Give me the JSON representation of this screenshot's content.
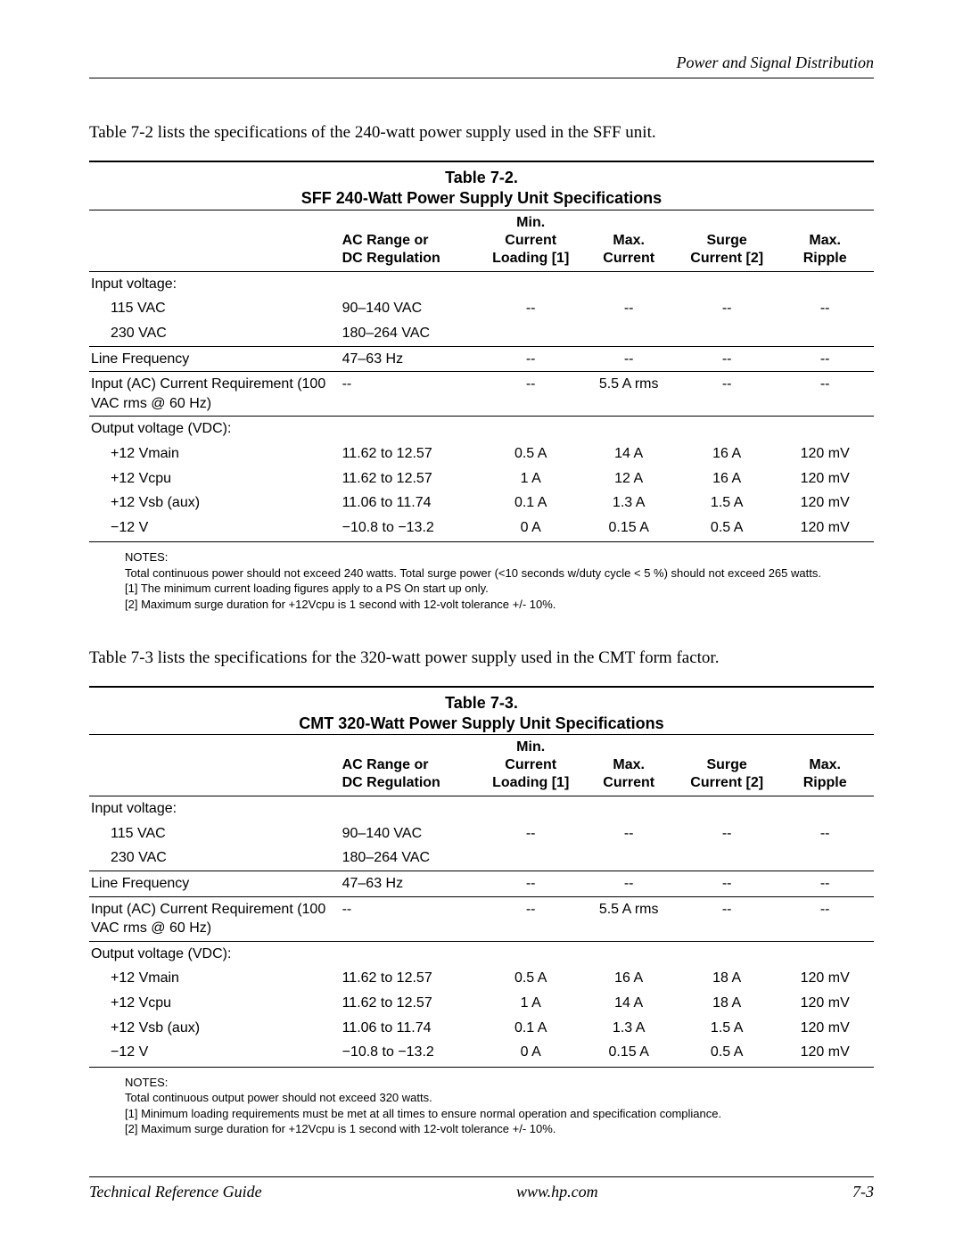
{
  "header": {
    "section_title": "Power and Signal Distribution"
  },
  "intro1": "Table 7-2 lists the specifications of the 240-watt power supply used in the SFF unit.",
  "intro2": "Table 7-3 lists the specifications for the 320-watt power supply used in the CMT form factor.",
  "columns": {
    "param": "",
    "ac": "AC Range or\nDC Regulation",
    "min": "Min.\nCurrent\nLoading [1]",
    "max": "Max.\nCurrent",
    "surge": "Surge\nCurrent [2]",
    "ripple": "Max.\nRipple"
  },
  "table1": {
    "number": "Table 7-2.",
    "title": "SFF 240-Watt Power Supply Unit Specifications",
    "rows": [
      {
        "label": "Input voltage:",
        "indent": false,
        "rule": false,
        "vals": [
          "",
          "",
          "",
          "",
          ""
        ]
      },
      {
        "label": "115 VAC",
        "indent": true,
        "rule": false,
        "vals": [
          "90–140 VAC",
          "--",
          "--",
          "--",
          "--"
        ]
      },
      {
        "label": "230 VAC",
        "indent": true,
        "rule": true,
        "vals": [
          "180–264 VAC",
          "",
          "",
          "",
          ""
        ]
      },
      {
        "label": "Line Frequency",
        "indent": false,
        "rule": true,
        "vals": [
          "47–63 Hz",
          "--",
          "--",
          "--",
          "--"
        ]
      },
      {
        "label": "Input (AC) Current Requirement (100 VAC rms @ 60 Hz)",
        "indent": false,
        "rule": true,
        "vals": [
          "--",
          "--",
          "5.5 A rms",
          "--",
          "--"
        ]
      },
      {
        "label": "Output voltage (VDC):",
        "indent": false,
        "rule": false,
        "vals": [
          "",
          "",
          "",
          "",
          ""
        ]
      },
      {
        "label": "+12 Vmain",
        "indent": true,
        "rule": false,
        "vals": [
          "11.62 to 12.57",
          "0.5 A",
          "14 A",
          "16 A",
          "120 mV"
        ]
      },
      {
        "label": "+12 Vcpu",
        "indent": true,
        "rule": false,
        "vals": [
          "11.62 to 12.57",
          "1 A",
          "12 A",
          "16 A",
          "120 mV"
        ]
      },
      {
        "label": "+12 Vsb (aux)",
        "indent": true,
        "rule": false,
        "vals": [
          "11.06 to 11.74",
          "0.1 A",
          "1.3 A",
          "1.5 A",
          "120 mV"
        ]
      },
      {
        "label": "−12 V",
        "indent": true,
        "rule": false,
        "vals": [
          "−10.8 to −13.2",
          "0 A",
          "0.15 A",
          "0.5 A",
          "120 mV"
        ]
      }
    ],
    "notes": [
      "NOTES:",
      "Total continuous power should not exceed 240 watts. Total surge power (<10 seconds w/duty cycle < 5 %) should not exceed 265 watts.",
      "[1] The minimum current loading figures apply to a PS On start up only.",
      "[2] Maximum surge duration for +12Vcpu is 1 second with 12-volt tolerance +/- 10%."
    ]
  },
  "table2": {
    "number": "Table 7-3.",
    "title": "CMT 320-Watt Power Supply Unit Specifications",
    "rows": [
      {
        "label": "Input voltage:",
        "indent": false,
        "rule": false,
        "vals": [
          "",
          "",
          "",
          "",
          ""
        ]
      },
      {
        "label": "115 VAC",
        "indent": true,
        "rule": false,
        "vals": [
          "90–140 VAC",
          "--",
          "--",
          "--",
          "--"
        ]
      },
      {
        "label": "230 VAC",
        "indent": true,
        "rule": true,
        "vals": [
          "180–264 VAC",
          "",
          "",
          "",
          ""
        ]
      },
      {
        "label": "Line Frequency",
        "indent": false,
        "rule": true,
        "vals": [
          "47–63 Hz",
          "--",
          "--",
          "--",
          "--"
        ]
      },
      {
        "label": "Input (AC) Current Requirement (100 VAC rms @ 60 Hz)",
        "indent": false,
        "rule": true,
        "vals": [
          "--",
          "--",
          "5.5 A rms",
          "--",
          "--"
        ]
      },
      {
        "label": "Output voltage (VDC):",
        "indent": false,
        "rule": false,
        "vals": [
          "",
          "",
          "",
          "",
          ""
        ]
      },
      {
        "label": "+12 Vmain",
        "indent": true,
        "rule": false,
        "vals": [
          "11.62 to 12.57",
          "0.5 A",
          "16 A",
          "18 A",
          "120 mV"
        ]
      },
      {
        "label": "+12 Vcpu",
        "indent": true,
        "rule": false,
        "vals": [
          "11.62 to 12.57",
          "1 A",
          "14 A",
          "18 A",
          "120 mV"
        ]
      },
      {
        "label": "+12 Vsb (aux)",
        "indent": true,
        "rule": false,
        "vals": [
          "11.06 to 11.74",
          "0.1 A",
          "1.3 A",
          "1.5 A",
          "120 mV"
        ]
      },
      {
        "label": "−12 V",
        "indent": true,
        "rule": false,
        "vals": [
          "−10.8 to −13.2",
          "0 A",
          "0.15 A",
          "0.5 A",
          "120 mV"
        ]
      }
    ],
    "notes": [
      "NOTES:",
      "Total continuous output power should not exceed 320 watts.",
      "[1] Minimum loading requirements must be met at all times to ensure normal operation and specification compliance.",
      "[2] Maximum surge duration for +12Vcpu is 1 second with 12-volt tolerance +/- 10%."
    ]
  },
  "footer": {
    "left": "Technical Reference Guide",
    "center": "www.hp.com",
    "right": "7-3"
  }
}
